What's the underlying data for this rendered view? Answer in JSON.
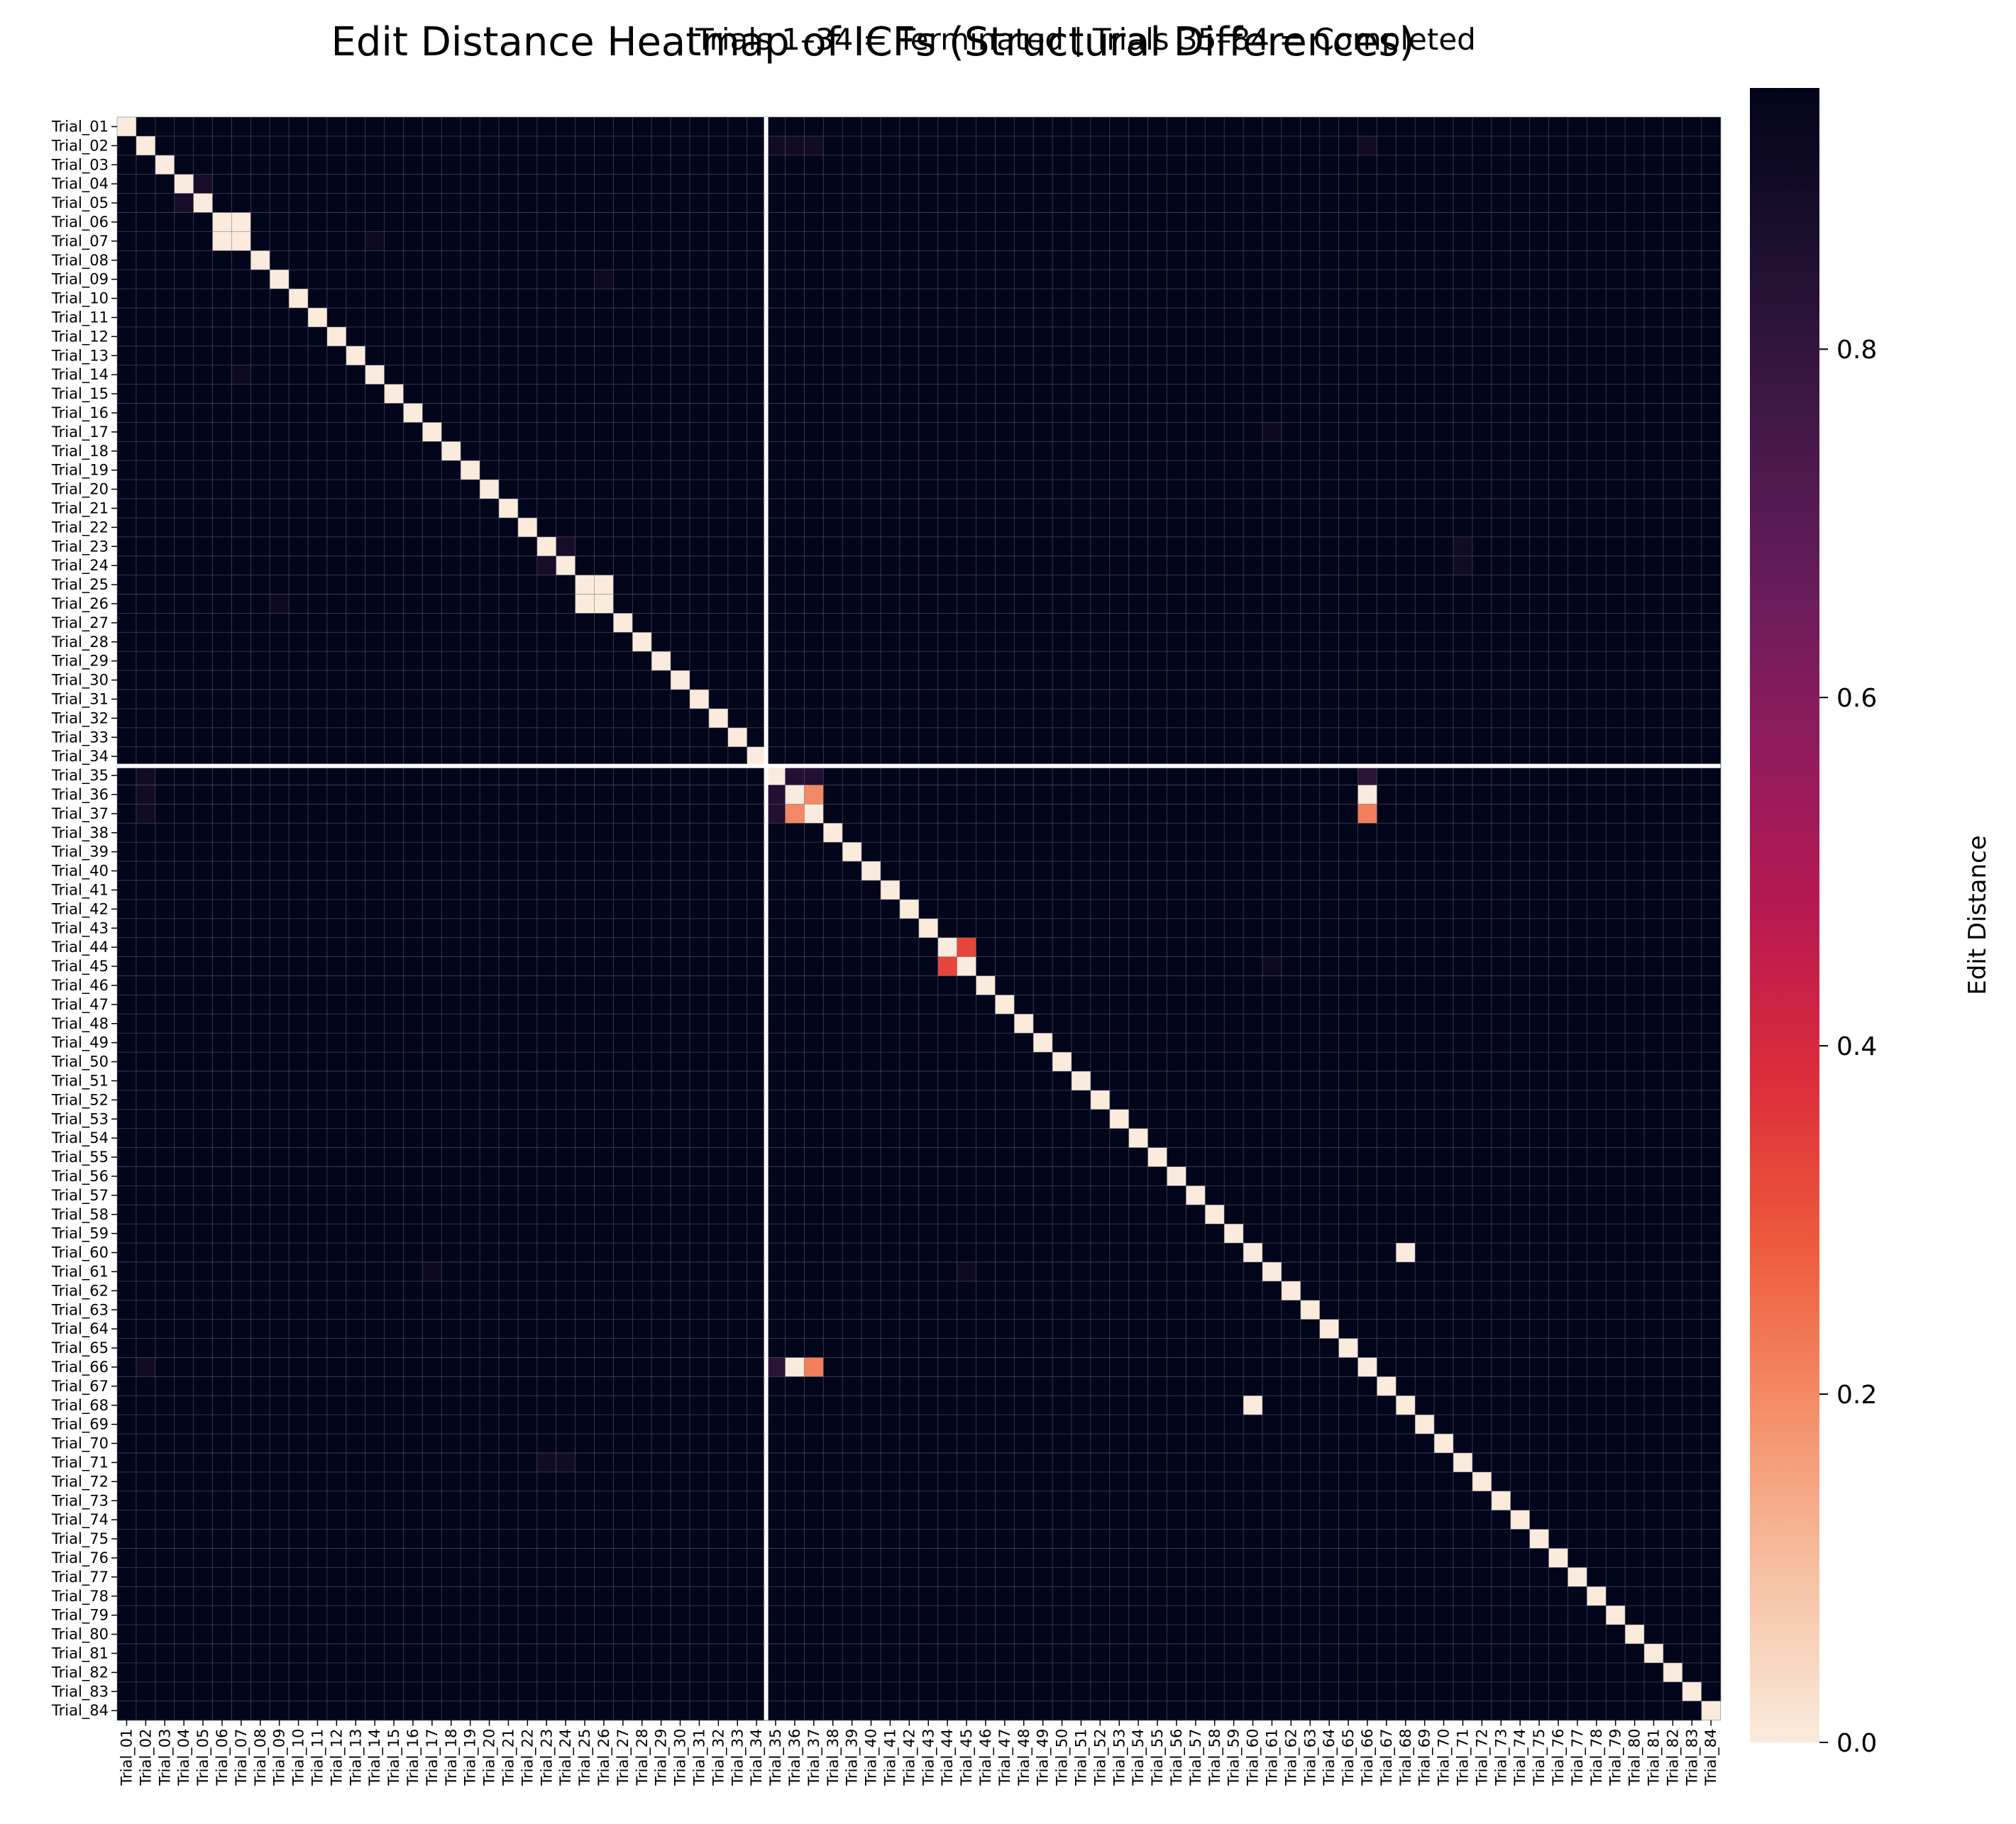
{
  "chart_data": {
    "type": "heatmap",
    "title": "Edit Distance Heatmap of ICFs (Structural Differences)",
    "subtitle": "Trials 1–34 = Terminated  |  Trials 35–84 = Completed",
    "colorbar_label": "Edit Distance",
    "colorbar_ticks": [
      "0.0",
      "0.2",
      "0.4",
      "0.6",
      "0.8"
    ],
    "colorbar_tick_values": [
      0.0,
      0.2,
      0.4,
      0.6,
      0.8
    ],
    "vmin": 0.0,
    "vmax": 0.95,
    "colormap": "rocket_r",
    "colors": {
      "low": "#faebdd",
      "mid": "#cb1b4f",
      "high": "#03051a",
      "grid_line": "#6a6a80",
      "separator": "#ffffff"
    },
    "group_split_after": 34,
    "n": 84,
    "row_labels": [
      "Trial_01",
      "Trial_02",
      "Trial_03",
      "Trial_04",
      "Trial_05",
      "Trial_06",
      "Trial_07",
      "Trial_08",
      "Trial_09",
      "Trial_10",
      "Trial_11",
      "Trial_12",
      "Trial_13",
      "Trial_14",
      "Trial_15",
      "Trial_16",
      "Trial_17",
      "Trial_18",
      "Trial_19",
      "Trial_20",
      "Trial_21",
      "Trial_22",
      "Trial_23",
      "Trial_24",
      "Trial_25",
      "Trial_26",
      "Trial_27",
      "Trial_28",
      "Trial_29",
      "Trial_30",
      "Trial_31",
      "Trial_32",
      "Trial_33",
      "Trial_34",
      "Trial_35",
      "Trial_36",
      "Trial_37",
      "Trial_38",
      "Trial_39",
      "Trial_40",
      "Trial_41",
      "Trial_42",
      "Trial_43",
      "Trial_44",
      "Trial_45",
      "Trial_46",
      "Trial_47",
      "Trial_48",
      "Trial_49",
      "Trial_50",
      "Trial_51",
      "Trial_52",
      "Trial_53",
      "Trial_54",
      "Trial_55",
      "Trial_56",
      "Trial_57",
      "Trial_58",
      "Trial_59",
      "Trial_60",
      "Trial_61",
      "Trial_62",
      "Trial_63",
      "Trial_64",
      "Trial_65",
      "Trial_66",
      "Trial_67",
      "Trial_68",
      "Trial_69",
      "Trial_70",
      "Trial_71",
      "Trial_72",
      "Trial_73",
      "Trial_74",
      "Trial_75",
      "Trial_76",
      "Trial_77",
      "Trial_78",
      "Trial_79",
      "Trial_80",
      "Trial_81",
      "Trial_82",
      "Trial_83",
      "Trial_84"
    ],
    "col_labels": [
      "Trial_01",
      "Trial_02",
      "Trial_03",
      "Trial_04",
      "Trial_05",
      "Trial_06",
      "Trial_07",
      "Trial_08",
      "Trial_09",
      "Trial_10",
      "Trial_11",
      "Trial_12",
      "Trial_13",
      "Trial_14",
      "Trial_15",
      "Trial_16",
      "Trial_17",
      "Trial_18",
      "Trial_19",
      "Trial_20",
      "Trial_21",
      "Trial_22",
      "Trial_23",
      "Trial_24",
      "Trial_25",
      "Trial_26",
      "Trial_27",
      "Trial_28",
      "Trial_29",
      "Trial_30",
      "Trial_31",
      "Trial_32",
      "Trial_33",
      "Trial_34",
      "Trial_35",
      "Trial_36",
      "Trial_37",
      "Trial_38",
      "Trial_39",
      "Trial_40",
      "Trial_41",
      "Trial_42",
      "Trial_43",
      "Trial_44",
      "Trial_45",
      "Trial_46",
      "Trial_47",
      "Trial_48",
      "Trial_49",
      "Trial_50",
      "Trial_51",
      "Trial_52",
      "Trial_53",
      "Trial_54",
      "Trial_55",
      "Trial_56",
      "Trial_57",
      "Trial_58",
      "Trial_59",
      "Trial_60",
      "Trial_61",
      "Trial_62",
      "Trial_63",
      "Trial_64",
      "Trial_65",
      "Trial_66",
      "Trial_67",
      "Trial_68",
      "Trial_69",
      "Trial_70",
      "Trial_71",
      "Trial_72",
      "Trial_73",
      "Trial_74",
      "Trial_75",
      "Trial_76",
      "Trial_77",
      "Trial_78",
      "Trial_79",
      "Trial_80",
      "Trial_81",
      "Trial_82",
      "Trial_83",
      "Trial_84"
    ],
    "default_off_diagonal": 0.95,
    "diagonal_value": 0.0,
    "cells": [
      {
        "i": 6,
        "j": 7,
        "v": 0.0
      },
      {
        "i": 25,
        "j": 26,
        "v": 0.0
      },
      {
        "i": 60,
        "j": 68,
        "v": 0.0
      },
      {
        "i": 36,
        "j": 66,
        "v": 0.0
      },
      {
        "i": 36,
        "j": 37,
        "v": 0.2
      },
      {
        "i": 37,
        "j": 66,
        "v": 0.22
      },
      {
        "i": 44,
        "j": 45,
        "v": 0.33
      },
      {
        "i": 35,
        "j": 36,
        "v": 0.85
      },
      {
        "i": 35,
        "j": 37,
        "v": 0.85
      },
      {
        "i": 35,
        "j": 66,
        "v": 0.82
      },
      {
        "i": 4,
        "j": 5,
        "v": 0.88
      },
      {
        "i": 23,
        "j": 24,
        "v": 0.88
      },
      {
        "i": 2,
        "j": 35,
        "v": 0.9
      },
      {
        "i": 2,
        "j": 36,
        "v": 0.9
      },
      {
        "i": 2,
        "j": 66,
        "v": 0.91
      },
      {
        "i": 23,
        "j": 71,
        "v": 0.9
      },
      {
        "i": 24,
        "j": 71,
        "v": 0.9
      },
      {
        "i": 7,
        "j": 14,
        "v": 0.91
      },
      {
        "i": 9,
        "j": 26,
        "v": 0.91
      },
      {
        "i": 45,
        "j": 61,
        "v": 0.91
      },
      {
        "i": 17,
        "j": 61,
        "v": 0.92
      },
      {
        "i": 36,
        "j": 2,
        "v": 0.9
      },
      {
        "i": 37,
        "j": 2,
        "v": 0.9
      },
      {
        "i": 66,
        "j": 2,
        "v": 0.9
      }
    ]
  }
}
